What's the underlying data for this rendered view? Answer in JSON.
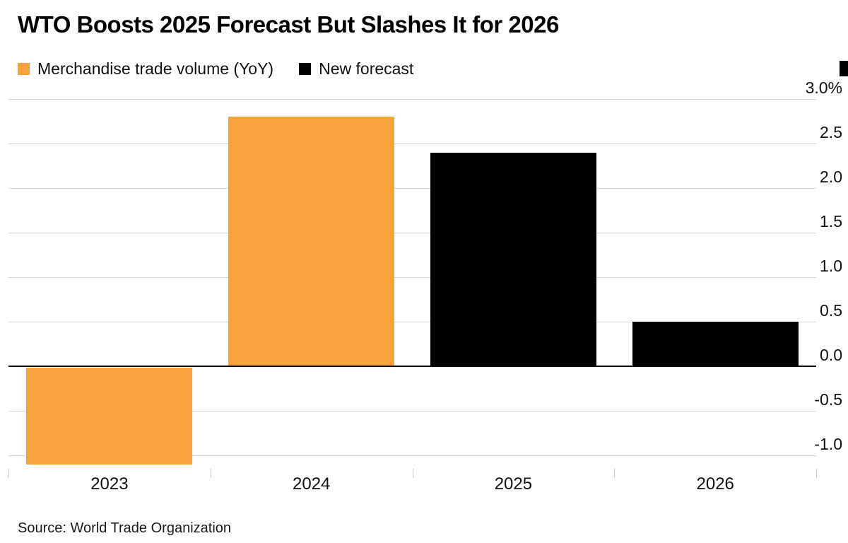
{
  "title": "WTO Boosts 2025 Forecast But Slashes It for 2026",
  "legend": [
    {
      "label": "Merchandise trade volume (YoY)",
      "color": "#F9A13B"
    },
    {
      "label": "New forecast",
      "color": "#000000"
    }
  ],
  "source": "Source: World Trade Organization",
  "colors": {
    "bar_orange": "#F9A13B",
    "bar_black": "#000000",
    "gridline": "#D8D8D8",
    "zero_axis": "#000000",
    "background": "#FFFFFF"
  },
  "chart_data": {
    "type": "bar",
    "title": "WTO Boosts 2025 Forecast But Slashes It for 2026",
    "categories": [
      "2023",
      "2024",
      "2025",
      "2026"
    ],
    "series": [
      {
        "name": "Merchandise trade volume (YoY)",
        "color": "#F9A13B",
        "values": [
          -1.1,
          2.8,
          null,
          null
        ]
      },
      {
        "name": "New forecast",
        "color": "#000000",
        "values": [
          null,
          null,
          2.4,
          0.5
        ]
      }
    ],
    "bars": [
      {
        "category": "2023",
        "value": -1.1,
        "series": "Merchandise trade volume (YoY)",
        "color": "#F9A13B"
      },
      {
        "category": "2024",
        "value": 2.8,
        "series": "Merchandise trade volume (YoY)",
        "color": "#F9A13B"
      },
      {
        "category": "2025",
        "value": 2.4,
        "series": "New forecast",
        "color": "#000000"
      },
      {
        "category": "2026",
        "value": 0.5,
        "series": "New forecast",
        "color": "#000000"
      }
    ],
    "xlabel": "",
    "ylabel": "",
    "unit": "%",
    "y_ticks": [
      "3.0%",
      "2.5",
      "2.0",
      "1.5",
      "1.0",
      "0.5",
      "0.0",
      "-0.5",
      "-1.0"
    ],
    "y_tick_values": [
      3.0,
      2.5,
      2.0,
      1.5,
      1.0,
      0.5,
      0.0,
      -0.5,
      -1.0
    ],
    "ylim": [
      -1.15,
      3.0
    ],
    "grid": true,
    "legend_position": "top-left"
  }
}
